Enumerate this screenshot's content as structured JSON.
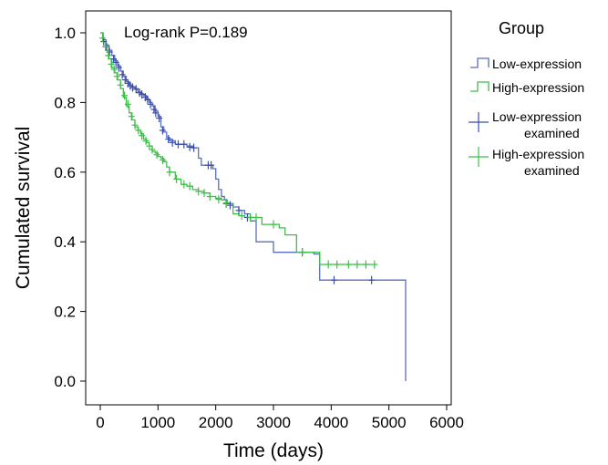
{
  "chart_data": {
    "type": "line",
    "title": "",
    "xlabel": "Time (days)",
    "ylabel": "Cumulated survival",
    "xlim": [
      0,
      6000
    ],
    "ylim": [
      0,
      1
    ],
    "x_ticks": [
      "0",
      "1000",
      "2000",
      "3000",
      "4000",
      "5000",
      "6000"
    ],
    "y_ticks": [
      "0.0",
      "0.2",
      "0.4",
      "0.6",
      "0.8",
      "1.0"
    ],
    "grid": false,
    "legend_placement": "right",
    "annotation": "Log-rank P=0.189",
    "legend": {
      "title": "Group",
      "entries": [
        {
          "label": [
            "Low-expression"
          ],
          "color": "#5a6ebe",
          "kind": "step"
        },
        {
          "label": [
            "High-expression"
          ],
          "color": "#3fbf4a",
          "kind": "step"
        },
        {
          "label": [
            "Low-expression",
            "examined"
          ],
          "color": "#3a4ea8",
          "kind": "censor"
        },
        {
          "label": [
            "High-expression",
            "examined"
          ],
          "color": "#3fbf4a",
          "kind": "censor"
        }
      ]
    },
    "series": [
      {
        "name": "Low-expression",
        "color": "#5a6ebe",
        "x": [
          0,
          50,
          100,
          150,
          200,
          250,
          300,
          350,
          400,
          450,
          500,
          550,
          600,
          650,
          700,
          750,
          800,
          850,
          900,
          950,
          1000,
          1050,
          1100,
          1150,
          1200,
          1300,
          1400,
          1500,
          1600,
          1700,
          1750,
          1800,
          1850,
          1900,
          1950,
          2000,
          2050,
          2100,
          2150,
          2200,
          2300,
          2400,
          2500,
          2600,
          2700,
          2800,
          3000,
          3200,
          3400,
          3600,
          3700,
          3800,
          4000,
          4500,
          5000,
          5270,
          5290
        ],
        "y": [
          1.0,
          0.98,
          0.965,
          0.95,
          0.935,
          0.92,
          0.905,
          0.89,
          0.875,
          0.86,
          0.85,
          0.845,
          0.84,
          0.83,
          0.825,
          0.82,
          0.81,
          0.8,
          0.79,
          0.775,
          0.76,
          0.73,
          0.715,
          0.7,
          0.69,
          0.68,
          0.68,
          0.675,
          0.67,
          0.64,
          0.62,
          0.62,
          0.62,
          0.62,
          0.61,
          0.58,
          0.55,
          0.53,
          0.52,
          0.51,
          0.5,
          0.49,
          0.48,
          0.46,
          0.4,
          0.4,
          0.37,
          0.37,
          0.37,
          0.37,
          0.365,
          0.29,
          0.29,
          0.29,
          0.29,
          0.29,
          0.0
        ],
        "censored": [
          [
            60,
            0.975
          ],
          [
            110,
            0.96
          ],
          [
            160,
            0.945
          ],
          [
            230,
            0.925
          ],
          [
            270,
            0.915
          ],
          [
            320,
            0.9
          ],
          [
            380,
            0.88
          ],
          [
            430,
            0.865
          ],
          [
            480,
            0.855
          ],
          [
            520,
            0.848
          ],
          [
            560,
            0.843
          ],
          [
            620,
            0.838
          ],
          [
            680,
            0.828
          ],
          [
            720,
            0.823
          ],
          [
            780,
            0.815
          ],
          [
            820,
            0.808
          ],
          [
            870,
            0.795
          ],
          [
            930,
            0.78
          ],
          [
            960,
            0.77
          ],
          [
            1020,
            0.755
          ],
          [
            1080,
            0.72
          ],
          [
            1180,
            0.695
          ],
          [
            1250,
            0.685
          ],
          [
            1350,
            0.68
          ],
          [
            1450,
            0.68
          ],
          [
            1550,
            0.672
          ],
          [
            1620,
            0.67
          ],
          [
            1870,
            0.62
          ],
          [
            1920,
            0.62
          ],
          [
            2180,
            0.51
          ],
          [
            2250,
            0.505
          ],
          [
            2400,
            0.49
          ],
          [
            2550,
            0.47
          ],
          [
            3500,
            0.37
          ],
          [
            4050,
            0.29
          ],
          [
            4700,
            0.29
          ]
        ]
      },
      {
        "name": "High-expression",
        "color": "#3fbf4a",
        "x": [
          0,
          50,
          100,
          150,
          200,
          250,
          300,
          350,
          400,
          450,
          500,
          550,
          600,
          650,
          700,
          750,
          800,
          850,
          900,
          950,
          1000,
          1050,
          1100,
          1150,
          1200,
          1300,
          1400,
          1500,
          1600,
          1700,
          1800,
          1900,
          2000,
          2100,
          2200,
          2300,
          2400,
          2500,
          2600,
          2700,
          2800,
          2900,
          3000,
          3100,
          3200,
          3400,
          3600,
          3800,
          4000,
          4200,
          4500,
          4700
        ],
        "y": [
          1.0,
          0.975,
          0.95,
          0.925,
          0.9,
          0.885,
          0.865,
          0.84,
          0.815,
          0.79,
          0.77,
          0.75,
          0.73,
          0.72,
          0.71,
          0.695,
          0.685,
          0.675,
          0.66,
          0.655,
          0.645,
          0.64,
          0.63,
          0.615,
          0.6,
          0.58,
          0.565,
          0.56,
          0.55,
          0.545,
          0.54,
          0.53,
          0.525,
          0.52,
          0.51,
          0.48,
          0.475,
          0.47,
          0.47,
          0.47,
          0.45,
          0.45,
          0.45,
          0.44,
          0.42,
          0.37,
          0.37,
          0.335,
          0.335,
          0.335,
          0.335,
          0.335
        ],
        "censored": [
          [
            40,
            0.985
          ],
          [
            90,
            0.96
          ],
          [
            140,
            0.935
          ],
          [
            190,
            0.91
          ],
          [
            240,
            0.895
          ],
          [
            290,
            0.875
          ],
          [
            350,
            0.85
          ],
          [
            420,
            0.82
          ],
          [
            480,
            0.795
          ],
          [
            540,
            0.76
          ],
          [
            600,
            0.735
          ],
          [
            660,
            0.72
          ],
          [
            720,
            0.705
          ],
          [
            790,
            0.69
          ],
          [
            850,
            0.675
          ],
          [
            900,
            0.665
          ],
          [
            980,
            0.65
          ],
          [
            1080,
            0.635
          ],
          [
            1200,
            0.6
          ],
          [
            1320,
            0.58
          ],
          [
            1450,
            0.565
          ],
          [
            1550,
            0.56
          ],
          [
            1700,
            0.545
          ],
          [
            1800,
            0.54
          ],
          [
            1900,
            0.53
          ],
          [
            2050,
            0.522
          ],
          [
            2180,
            0.512
          ],
          [
            2450,
            0.475
          ],
          [
            2600,
            0.47
          ],
          [
            2700,
            0.47
          ],
          [
            3000,
            0.45
          ],
          [
            3500,
            0.37
          ],
          [
            3950,
            0.335
          ],
          [
            4100,
            0.335
          ],
          [
            4300,
            0.335
          ],
          [
            4450,
            0.335
          ],
          [
            4600,
            0.335
          ],
          [
            4750,
            0.335
          ]
        ]
      }
    ]
  }
}
